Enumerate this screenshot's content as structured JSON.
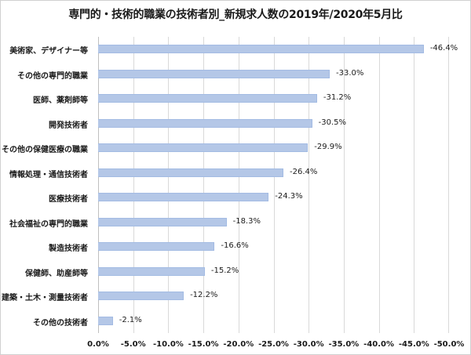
{
  "chart_data": {
    "type": "bar",
    "orientation": "horizontal",
    "title": "専門的・技術的職業の技術者別_新規求人数の2019年/2020年5月比",
    "xlabel": "",
    "ylabel": "",
    "xlim": [
      0.0,
      -50.0
    ],
    "grid": true,
    "legend": null,
    "bar_color": "#b4c7e7",
    "categories": [
      "美術家、デザイナー等",
      "その他の専門的職業",
      "医師、薬剤師等",
      "開発技術者",
      "その他の保健医療の職業",
      "情報処理・通信技術者",
      "医療技術者",
      "社会福祉の専門的職業",
      "製造技術者",
      "保健師、助産師等",
      "建築・土木・測量技術者",
      "その他の技術者"
    ],
    "values": [
      -46.4,
      -33.0,
      -31.2,
      -30.5,
      -29.9,
      -26.4,
      -24.3,
      -18.3,
      -16.6,
      -15.2,
      -12.2,
      -2.1
    ],
    "data_labels": [
      "-46.4%",
      "-33.0%",
      "-31.2%",
      "-30.5%",
      "-29.9%",
      "-26.4%",
      "-24.3%",
      "-18.3%",
      "-16.6%",
      "-15.2%",
      "-12.2%",
      "-2.1%"
    ],
    "x_ticks": [
      "0.0%",
      "-5.0%",
      "-10.0%",
      "-15.0%",
      "-20.0%",
      "-25.0%",
      "-30.0%",
      "-35.0%",
      "-40.0%",
      "-45.0%",
      "-50.0%"
    ]
  }
}
